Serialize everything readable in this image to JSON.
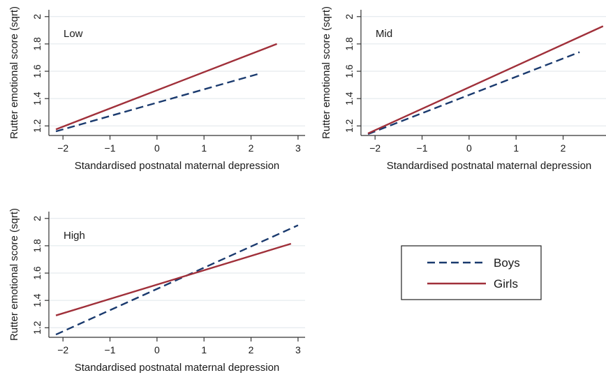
{
  "chart_data": [
    {
      "type": "line",
      "panel_label": "Low",
      "xlabel": "Standardised postnatal maternal depression",
      "ylabel": "Rutter emotional score (sqrt)",
      "xlim": [
        -2.3,
        3.15
      ],
      "ylim": [
        1.13,
        2.05
      ],
      "xticks": [
        -2,
        -1,
        0,
        1,
        2,
        3
      ],
      "xtick_labels": [
        "−2",
        "−1",
        "0",
        "1",
        "2",
        "3"
      ],
      "yticks": [
        1.2,
        1.4,
        1.6,
        1.8,
        2.0
      ],
      "ytick_labels": [
        "1.2",
        "1.4",
        "1.6",
        "1.8",
        "2"
      ],
      "grid": "horizontal",
      "series": [
        {
          "name": "Boys",
          "x": [
            -2.15,
            2.15
          ],
          "y": [
            1.16,
            1.58
          ]
        },
        {
          "name": "Girls",
          "x": [
            -2.15,
            2.55
          ],
          "y": [
            1.175,
            1.8
          ]
        }
      ]
    },
    {
      "type": "line",
      "panel_label": "Mid",
      "xlabel": "Standardised postnatal maternal depression",
      "ylabel": "Rutter emotional score (sqrt)",
      "xlim": [
        -2.3,
        3.15
      ],
      "ylim": [
        1.13,
        2.05
      ],
      "xticks": [
        -2,
        -1,
        0,
        1,
        2,
        3
      ],
      "xtick_labels": [
        "−2",
        "−1",
        "0",
        "1",
        "2",
        "3"
      ],
      "yticks": [
        1.2,
        1.4,
        1.6,
        1.8,
        2.0
      ],
      "ytick_labels": [
        "1.2",
        "1.4",
        "1.6",
        "1.8",
        "2"
      ],
      "grid": "horizontal",
      "series": [
        {
          "name": "Boys",
          "x": [
            -2.15,
            2.35
          ],
          "y": [
            1.14,
            1.74
          ]
        },
        {
          "name": "Girls",
          "x": [
            -2.15,
            2.85
          ],
          "y": [
            1.145,
            1.93
          ]
        }
      ]
    },
    {
      "type": "line",
      "panel_label": "High",
      "xlabel": "Standardised postnatal maternal depression",
      "ylabel": "Rutter emotional score (sqrt)",
      "xlim": [
        -2.3,
        3.15
      ],
      "ylim": [
        1.13,
        2.05
      ],
      "xticks": [
        -2,
        -1,
        0,
        1,
        2,
        3
      ],
      "xtick_labels": [
        "−2",
        "−1",
        "0",
        "1",
        "2",
        "3"
      ],
      "yticks": [
        1.2,
        1.4,
        1.6,
        1.8,
        2.0
      ],
      "ytick_labels": [
        "1.2",
        "1.4",
        "1.6",
        "1.8",
        "2"
      ],
      "grid": "horizontal",
      "series": [
        {
          "name": "Boys",
          "x": [
            -2.15,
            3.0
          ],
          "y": [
            1.15,
            1.95
          ]
        },
        {
          "name": "Girls",
          "x": [
            -2.15,
            2.85
          ],
          "y": [
            1.29,
            1.815
          ]
        }
      ]
    }
  ],
  "legend": {
    "placement": "lower-right",
    "entries": [
      {
        "name": "Boys",
        "color": "#1a3a6e",
        "style": "dashed"
      },
      {
        "name": "Girls",
        "color": "#a0303a",
        "style": "solid"
      }
    ]
  },
  "colors": {
    "boys": "#1a3a6e",
    "girls": "#a0303a",
    "grid": "#dfe6ea",
    "axis": "#333333"
  }
}
